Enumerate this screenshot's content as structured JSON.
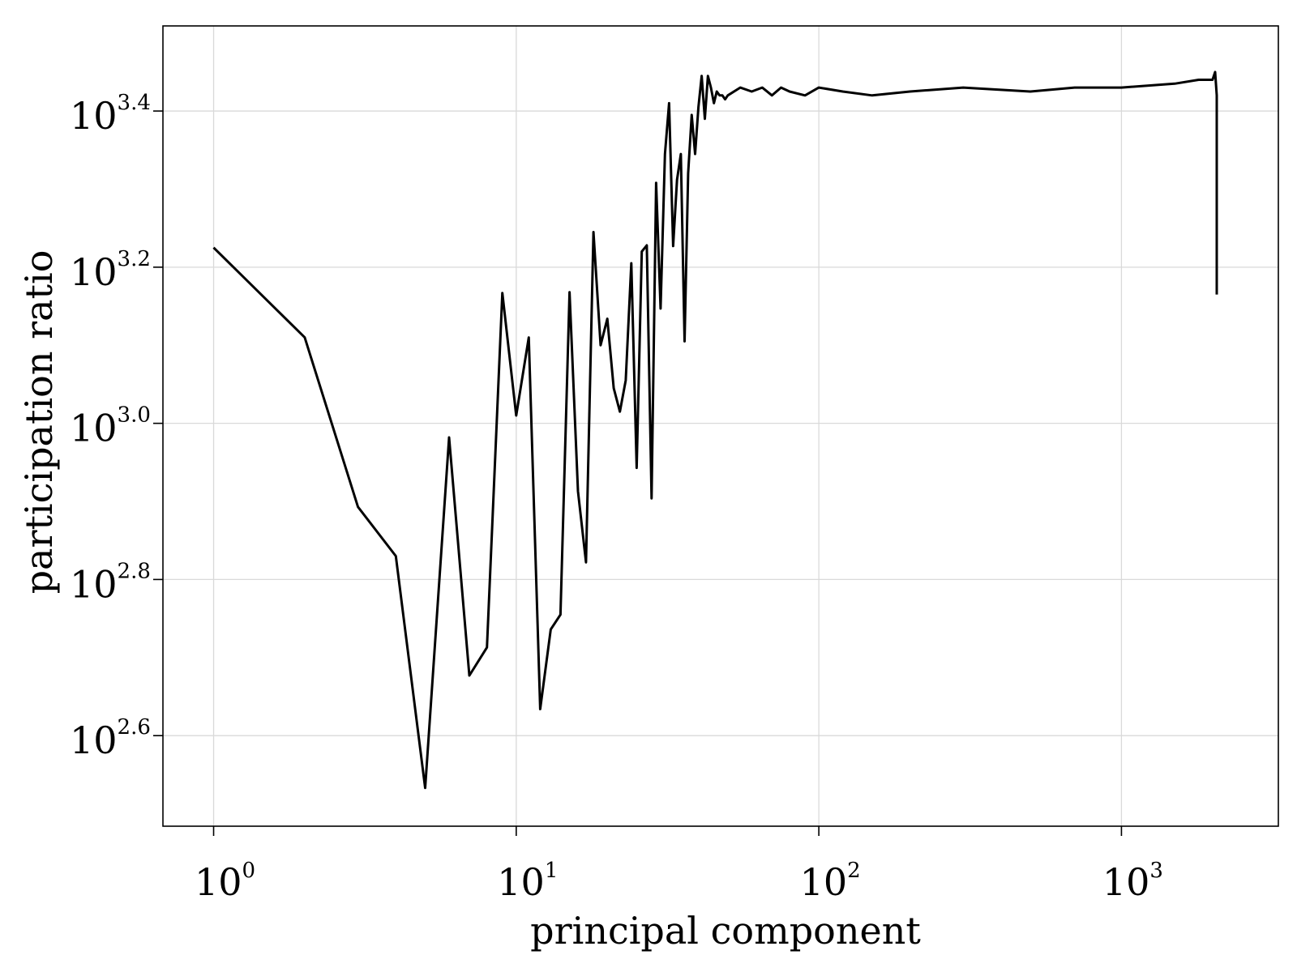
{
  "chart_data": {
    "type": "line",
    "title": "",
    "xlabel": "principal component",
    "ylabel": "participation ratio",
    "x_scale": "log",
    "y_scale": "log",
    "xlim": [
      0.68,
      3300
    ],
    "ylim_log10": [
      2.484,
      3.509
    ],
    "x_ticks": [
      {
        "value": 1,
        "base": "10",
        "exp": "0"
      },
      {
        "value": 10,
        "base": "10",
        "exp": "1"
      },
      {
        "value": 100,
        "base": "10",
        "exp": "2"
      },
      {
        "value": 1000,
        "base": "10",
        "exp": "3"
      }
    ],
    "y_ticks": [
      {
        "log10": 2.6,
        "base": "10",
        "exp": "2.6"
      },
      {
        "log10": 2.8,
        "base": "10",
        "exp": "2.8"
      },
      {
        "log10": 3.0,
        "base": "10",
        "exp": "3.0"
      },
      {
        "log10": 3.2,
        "base": "10",
        "exp": "3.2"
      },
      {
        "log10": 3.4,
        "base": "10",
        "exp": "3.4"
      }
    ],
    "grid": true,
    "legend": "none",
    "line_color": "#000000",
    "series": [
      {
        "x": [
          1,
          2,
          3,
          4,
          5,
          6,
          7,
          8,
          9,
          10,
          11,
          12,
          13,
          14,
          15,
          16,
          17,
          18,
          19,
          20,
          21,
          22,
          23,
          24,
          25,
          26,
          27,
          28,
          29,
          30,
          31,
          32,
          33,
          34,
          35,
          36,
          37,
          38,
          39,
          40,
          41,
          42,
          43,
          44,
          45,
          46,
          47,
          48,
          49,
          50,
          55,
          60,
          65,
          70,
          75,
          80,
          90,
          100,
          120,
          150,
          200,
          300,
          500,
          700,
          1000,
          1500,
          1800,
          2000,
          2040,
          2046,
          2047,
          2048
        ],
        "y_log10": [
          3.225,
          3.11,
          2.893,
          2.83,
          2.533,
          2.982,
          2.677,
          2.713,
          3.167,
          3.01,
          3.11,
          2.634,
          2.736,
          2.755,
          3.168,
          2.913,
          2.822,
          3.245,
          3.1,
          3.134,
          3.045,
          3.015,
          3.055,
          3.205,
          2.943,
          3.22,
          3.228,
          2.904,
          3.308,
          3.147,
          3.345,
          3.41,
          3.227,
          3.312,
          3.345,
          3.105,
          3.32,
          3.395,
          3.345,
          3.405,
          3.445,
          3.39,
          3.445,
          3.43,
          3.41,
          3.425,
          3.42,
          3.42,
          3.415,
          3.42,
          3.43,
          3.425,
          3.43,
          3.42,
          3.43,
          3.425,
          3.42,
          3.43,
          3.425,
          3.42,
          3.425,
          3.43,
          3.425,
          3.43,
          3.43,
          3.435,
          3.44,
          3.44,
          3.45,
          3.42,
          3.33,
          3.165
        ]
      }
    ]
  }
}
